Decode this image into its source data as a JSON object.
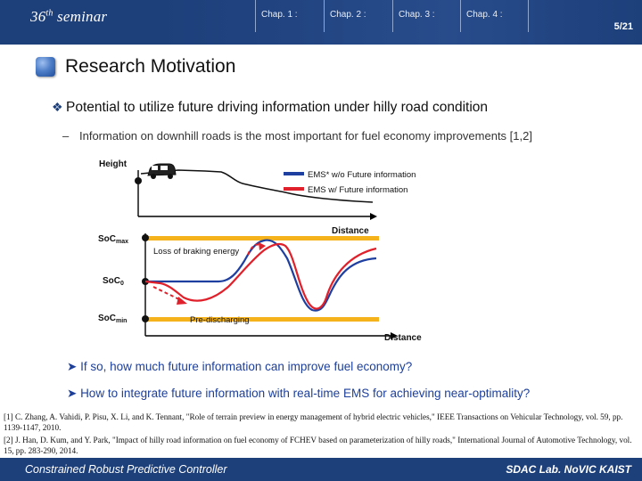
{
  "header": {
    "seminar_number": "36",
    "seminar_suffix": "th",
    "seminar_word": "seminar",
    "chapters": [
      "Chap. 1 :",
      "Chap. 2 :",
      "Chap. 3 :",
      "Chap. 4 :"
    ],
    "page": "5/21"
  },
  "title": "Research Motivation",
  "main_bullet": "Potential to utilize future driving information under hilly road condition",
  "sub_bullet": "Information on downhill roads is the most important for fuel economy improvements [1,2]",
  "figure": {
    "height_label": "Height",
    "legend": [
      "EMS* w/o Future information",
      "EMS w/ Future information"
    ],
    "distance_label_top": "Distance",
    "soc_max": "SoC",
    "soc_max_sub": "max",
    "soc_0": "SoC",
    "soc_0_sub": "0",
    "soc_min": "SoC",
    "soc_min_sub": "min",
    "loss_label": "Loss of braking energy",
    "pre_label": "Pre-discharging",
    "distance_label_bottom": "Distance",
    "colors": {
      "blue": "#1f3fa0",
      "red": "#e0202a",
      "yellow": "#f5b21a",
      "terrain": "#111111"
    },
    "icon": "car-icon"
  },
  "questions": [
    "If so, how much future information can improve fuel economy?",
    "How to integrate future information with real-time EMS for achieving near-optimality?"
  ],
  "references": [
    "[1] C. Zhang, A. Vahidi, P. Pisu, X. Li, and K. Tennant, \"Role of terrain preview in energy management of hybrid electric vehicles,\" IEEE Transactions on Vehicular Technology, vol. 59, pp. 1139-1147, 2010.",
    "[2] J. Han, D. Kum, and Y. Park, \"Impact of hilly road information on fuel economy of FCHEV based on parameterization of hilly roads,\" International Journal of Automotive Technology, vol. 15, pp. 283-290, 2014."
  ],
  "footer": {
    "left": "Constrained Robust Predictive Controller",
    "right": "SDAC Lab. NoVIC KAIST"
  }
}
